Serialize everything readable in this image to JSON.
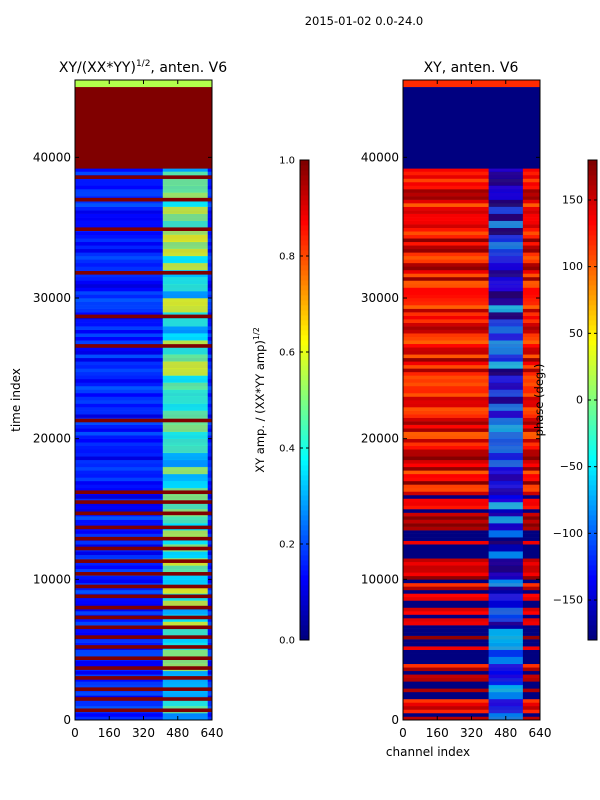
{
  "suptitle": "2015-01-02 0.0-24.0",
  "chart_data": [
    {
      "type": "heatmap",
      "title": "XY/(XX*YY)",
      "title_exponent": "1/2",
      "title_suffix": ", anten. V6",
      "xlabel": "",
      "ylabel": "time index",
      "xlim": [
        0,
        640
      ],
      "ylim": [
        0,
        45500
      ],
      "xticks": [
        0,
        160,
        320,
        480,
        640
      ],
      "yticks": [
        0,
        10000,
        20000,
        30000,
        40000
      ],
      "colormap": "jet",
      "colorbar": {
        "label": "XY amp. / (XX*YY amp)",
        "label_exponent": "1/2",
        "range": [
          0.0,
          1.0
        ],
        "ticks": [
          "0.0",
          "0.2",
          "0.4",
          "0.6",
          "0.8",
          "1.0"
        ]
      },
      "regions": [
        {
          "y": [
            39200,
            45000
          ],
          "x": [
            0,
            640
          ],
          "value": 1.0
        },
        {
          "y": [
            45000,
            45500
          ],
          "x": [
            0,
            640
          ],
          "value": 0.55
        }
      ],
      "background_value": 0.15,
      "channel_band": {
        "x": [
          410,
          620
        ],
        "value": 0.45
      },
      "saturated_rows": [
        600,
        1400,
        2100,
        2900,
        3600,
        4300,
        5100,
        5800,
        6500,
        7200,
        7900,
        8700,
        9400,
        10300,
        11200,
        12100,
        12800,
        13600,
        14600,
        15400,
        16100,
        21200,
        26500,
        28600,
        31700,
        34800,
        36900,
        38500
      ]
    },
    {
      "type": "heatmap",
      "title": "XY, anten. V6",
      "xlabel": "channel index",
      "ylabel": "",
      "xlim": [
        0,
        640
      ],
      "ylim": [
        0,
        45500
      ],
      "xticks": [
        0,
        160,
        320,
        480,
        640
      ],
      "yticks": [
        0,
        10000,
        20000,
        30000,
        40000
      ],
      "colormap": "jet",
      "colorbar": {
        "label": "phase (deg.)",
        "range": [
          -180,
          180
        ],
        "ticks": [
          "150",
          "100",
          "50",
          "0",
          "−50",
          "−100",
          "−150"
        ],
        "tick_values": [
          150,
          100,
          50,
          0,
          -50,
          -100,
          -150
        ]
      },
      "regions": [
        {
          "y": [
            39200,
            45000
          ],
          "x": [
            0,
            640
          ],
          "value": -180
        },
        {
          "y": [
            45000,
            45500
          ],
          "x": [
            0,
            640
          ],
          "value": 120
        }
      ],
      "background_value": 140,
      "channel_band": {
        "x": [
          400,
          560
        ],
        "value": -120
      },
      "banded_rows_below": 16000,
      "band_value": -180
    }
  ]
}
